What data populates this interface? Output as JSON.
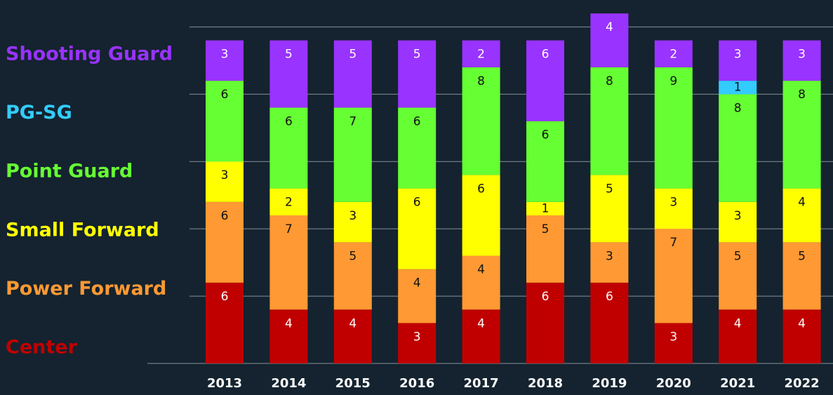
{
  "chart_data": {
    "type": "stacked-bar",
    "categories": [
      "2013",
      "2014",
      "2015",
      "2016",
      "2017",
      "2018",
      "2019",
      "2020",
      "2021",
      "2022"
    ],
    "series": [
      {
        "name": "Center",
        "color": "#c00000",
        "values": [
          6,
          4,
          4,
          3,
          4,
          6,
          6,
          3,
          4,
          4
        ]
      },
      {
        "name": "Power Forward",
        "color": "#ff9933",
        "values": [
          6,
          7,
          5,
          4,
          4,
          5,
          3,
          7,
          5,
          5
        ]
      },
      {
        "name": "Small Forward",
        "color": "#ffff00",
        "values": [
          3,
          2,
          3,
          6,
          6,
          1,
          5,
          3,
          3,
          4
        ]
      },
      {
        "name": "Point Guard",
        "color": "#66ff33",
        "values": [
          6,
          6,
          7,
          6,
          8,
          6,
          8,
          9,
          8,
          8
        ]
      },
      {
        "name": "PG-SG",
        "color": "#33ccff",
        "values": [
          0,
          0,
          0,
          0,
          0,
          0,
          0,
          0,
          1,
          0
        ]
      },
      {
        "name": "Shooting Guard",
        "color": "#9933ff",
        "values": [
          3,
          5,
          5,
          5,
          2,
          6,
          4,
          2,
          3,
          3
        ]
      }
    ],
    "ylim": [
      0,
      27
    ],
    "yticks": [
      0,
      5,
      10,
      15,
      20,
      25
    ],
    "grid": true
  }
}
